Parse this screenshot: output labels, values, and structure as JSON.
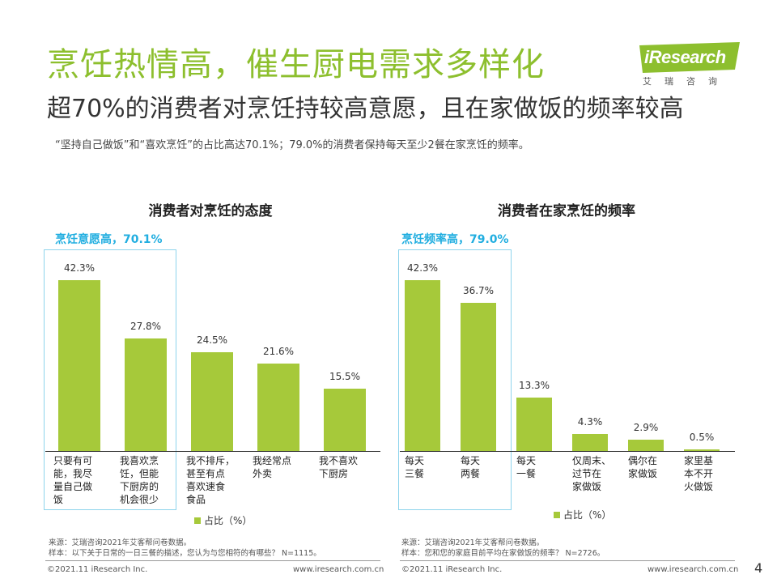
{
  "header": {
    "title": "烹饪热情高，催生厨电需求多样化",
    "subtitle": "超70%的消费者对烹饪持较高意愿，且在家做饭的频率较高",
    "description": "“坚持自己做饭”和“喜欢烹饪”的占比高达70.1%；79.0%的消费者保持每天至少2餐在家烹饪的频率。"
  },
  "logo": {
    "brand": "iResearch",
    "tagline": "艾瑞咨询"
  },
  "colors": {
    "accent": "#8dbf2e",
    "bar": "#a6c93a",
    "highlight": "#21aee0"
  },
  "chart_data": [
    {
      "type": "bar",
      "title": "消费者对烹饪的态度",
      "highlight_label": "烹饪意愿高，70.1%",
      "categories": [
        "只要有可\n能，我尽\n量自己做\n饭",
        "我喜欢烹\n饪，但能\n下厨房的\n机会很少",
        "我不排斥，\n甚至有点\n喜欢速食\n食品",
        "我经常点\n外卖",
        "我不喜欢\n下厨房"
      ],
      "values": [
        42.3,
        27.8,
        24.5,
        21.6,
        15.5
      ],
      "value_labels": [
        "42.3%",
        "27.8%",
        "24.5%",
        "21.6%",
        "15.5%"
      ],
      "legend": "占比（%）",
      "ylim": [
        0,
        50
      ],
      "source": "来源：艾瑞咨询2021年艾客帮问卷数据。",
      "sample": "样本：以下关于日常的一日三餐的描述，您认为与您相符的有哪些？ N=1115。"
    },
    {
      "type": "bar",
      "title": "消费者在家烹饪的频率",
      "highlight_label": "烹饪频率高，79.0%",
      "categories": [
        "每天\n三餐",
        "每天\n两餐",
        "每天\n一餐",
        "仅周末、\n过节在\n家做饭",
        "偶尔在\n家做饭",
        "家里基\n本不开\n火做饭"
      ],
      "values": [
        42.3,
        36.7,
        13.3,
        4.3,
        2.9,
        0.5
      ],
      "value_labels": [
        "42.3%",
        "36.7%",
        "13.3%",
        "4.3%",
        "2.9%",
        "0.5%"
      ],
      "legend": "占比（%）",
      "ylim": [
        0,
        50
      ],
      "source": "来源：艾瑞咨询2021年艾客帮问卷数据。",
      "sample": "样本：您和您的家庭目前平均在家做饭的频率？ N=2726。"
    }
  ],
  "footer": {
    "copyright_left": "©2021.11 iResearch Inc.",
    "url_left": "www.iresearch.com.cn",
    "copyright_right": "©2021.11 iResearch Inc.",
    "url_right": "www.iresearch.com.cn",
    "page": "4"
  }
}
